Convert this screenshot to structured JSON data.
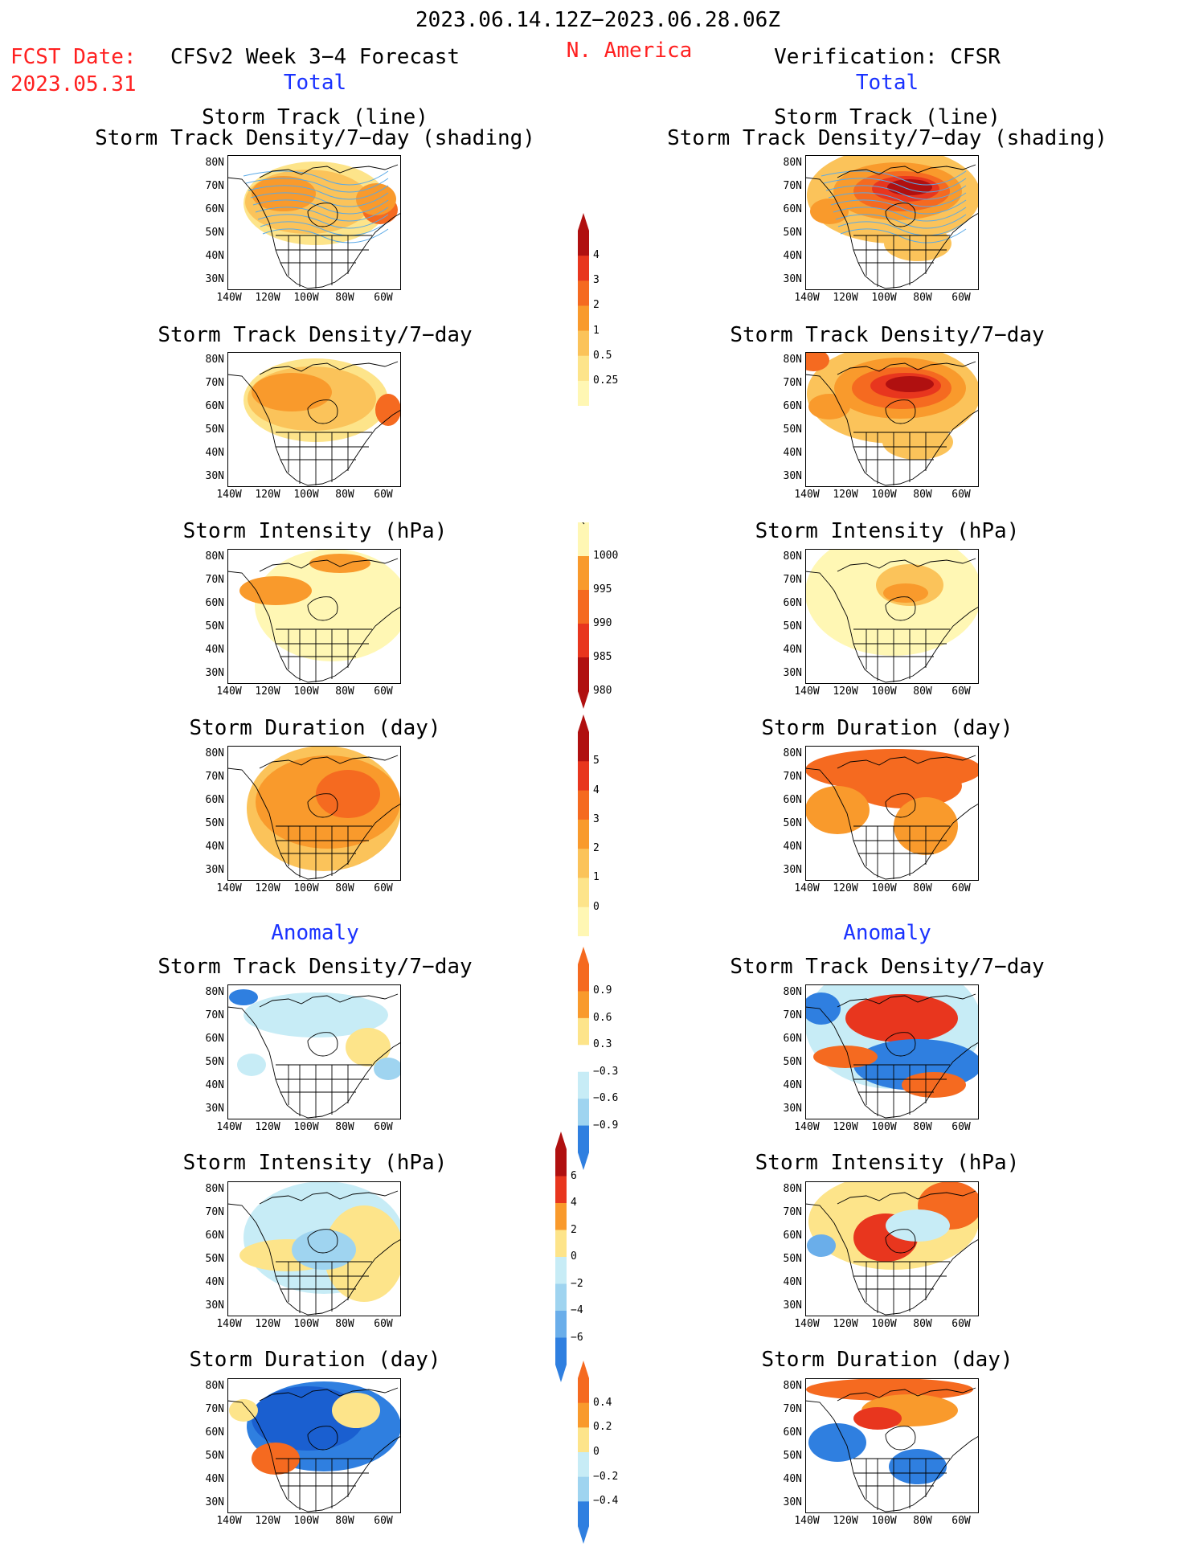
{
  "header": {
    "date_range": "2023.06.14.12Z−2023.06.28.06Z",
    "region": "N. America",
    "fcst_label": "FCST Date:",
    "fcst_date": "2023.05.31",
    "left_title": "CFSv2 Week 3−4 Forecast",
    "right_title": "Verification: CFSR",
    "left_total": "Total",
    "right_total": "Total",
    "left_anomaly": "Anomaly",
    "right_anomaly": "Anomaly"
  },
  "panel_titles": {
    "track_line": "Storm Track (line)",
    "track_shading": "Storm Track Density/7−day (shading)",
    "density": "Storm Track Density/7−day",
    "intensity": "Storm Intensity (hPa)",
    "duration": "Storm Duration (day)"
  },
  "axes": {
    "lat_labels": [
      "80N",
      "70N",
      "60N",
      "50N",
      "40N",
      "30N"
    ],
    "lon_labels": [
      "140W",
      "120W",
      "100W",
      "80W",
      "60W"
    ]
  },
  "colors": {
    "yellow_pale": "#fff7b4",
    "yellow": "#fde48a",
    "light_orange": "#fbc35a",
    "orange": "#f99a2c",
    "dark_orange": "#f56a20",
    "red": "#e8361e",
    "dark_red": "#b01010",
    "light_cyan": "#c7ecf6",
    "light_blue": "#9fd4f0",
    "mid_blue": "#6aaeea",
    "blue": "#2f7fe0",
    "dark_blue": "#1a5fd0",
    "track_line": "#5aa9e6",
    "header_red": "#ff2020",
    "header_blue": "#1a32ff"
  },
  "colorbars": [
    {
      "id": "density_total",
      "labels": [
        "4",
        "3",
        "2",
        "1",
        "0.5",
        "0.25"
      ],
      "colors": [
        "#b01010",
        "#e8361e",
        "#f56a20",
        "#f99a2c",
        "#fbc35a",
        "#fde48a",
        "#fff7b4"
      ],
      "top_arrow": true,
      "bottom_arrow": false
    },
    {
      "id": "intensity_total",
      "labels": [
        "1000",
        "995",
        "990",
        "985",
        "980"
      ],
      "colors": [
        "#fff7b4",
        "#f99a2c",
        "#f56a20",
        "#e8361e",
        "#b01010"
      ],
      "top_arrow": false,
      "bottom_arrow": true
    },
    {
      "id": "duration_total",
      "labels": [
        "5",
        "4",
        "3",
        "2",
        "1",
        "0"
      ],
      "colors": [
        "#b01010",
        "#e8361e",
        "#f56a20",
        "#f99a2c",
        "#fbc35a",
        "#fde48a",
        "#fff7b4"
      ],
      "top_arrow": true,
      "bottom_arrow": false
    },
    {
      "id": "density_anomaly",
      "labels": [
        "0.9",
        "0.6",
        "0.3",
        "−0.3",
        "−0.6",
        "−0.9"
      ],
      "colors": [
        "#f56a20",
        "#f99a2c",
        "#fde48a",
        "#ffffff",
        "#c7ecf6",
        "#9fd4f0",
        "#2f7fe0"
      ],
      "top_arrow": true,
      "bottom_arrow": true
    },
    {
      "id": "intensity_anomaly",
      "labels": [
        "6",
        "4",
        "2",
        "0",
        "−2",
        "−4",
        "−6"
      ],
      "colors": [
        "#b01010",
        "#e8361e",
        "#f99a2c",
        "#fde48a",
        "#c7ecf6",
        "#9fd4f0",
        "#6aaeea",
        "#2f7fe0"
      ],
      "top_arrow": true,
      "bottom_arrow": true
    },
    {
      "id": "duration_anomaly",
      "labels": [
        "0.4",
        "0.2",
        "0",
        "−0.2",
        "−0.4"
      ],
      "colors": [
        "#f56a20",
        "#f99a2c",
        "#fde48a",
        "#c7ecf6",
        "#9fd4f0",
        "#2f7fe0"
      ],
      "top_arrow": true,
      "bottom_arrow": true
    }
  ]
}
